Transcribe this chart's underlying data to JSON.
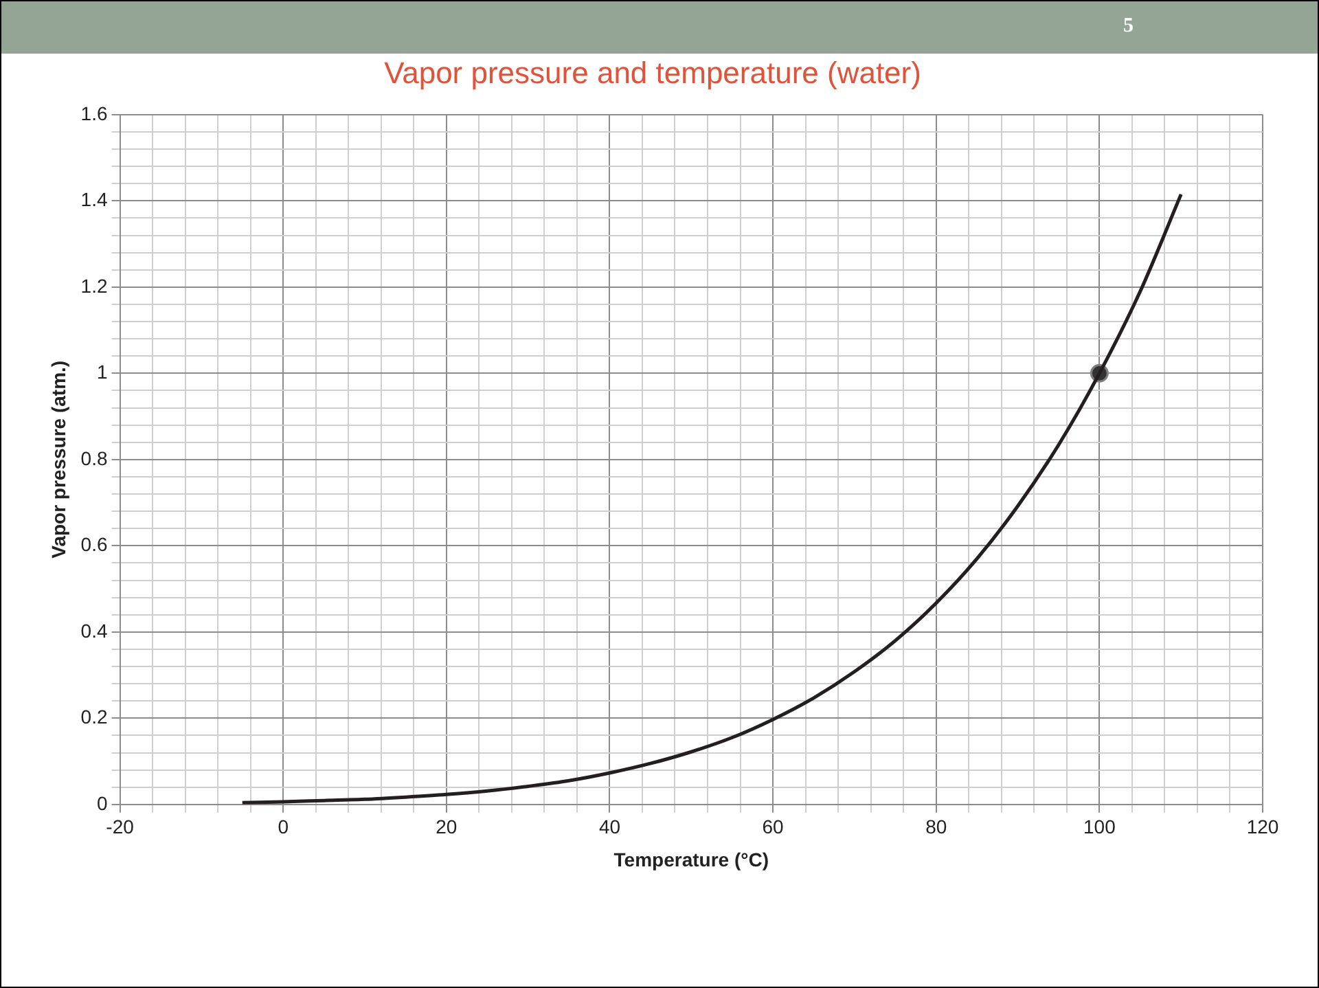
{
  "chart_data": {
    "type": "line",
    "title": "Vapor pressure and temperature (water)",
    "xlabel": "Temperature (°C)",
    "ylabel": "Vapor pressure (atm.)",
    "annotations": [
      "5"
    ],
    "series": [
      {
        "color": "#231f20",
        "marker": "none",
        "x": [
          -5,
          0,
          5,
          10,
          15,
          20,
          25,
          30,
          35,
          40,
          45,
          50,
          55,
          60,
          65,
          70,
          75,
          80,
          85,
          90,
          95,
          100,
          105,
          110
        ],
        "values": [
          0.004,
          0.006,
          0.009,
          0.012,
          0.017,
          0.023,
          0.031,
          0.042,
          0.055,
          0.073,
          0.095,
          0.122,
          0.155,
          0.197,
          0.247,
          0.308,
          0.38,
          0.467,
          0.57,
          0.692,
          0.834,
          1,
          1.19,
          1.415
        ]
      },
      {
        "type": "scatter",
        "color": "#333333",
        "marker": "circle",
        "x": [
          100
        ],
        "values": [
          1
        ]
      }
    ],
    "xlim": [
      -20,
      120
    ],
    "ylim": [
      0,
      1.6
    ],
    "grid": true,
    "xticks": [
      -20,
      {
        "value": -16,
        "label": null
      },
      {
        "value": -12,
        "label": null
      },
      {
        "value": -8,
        "label": null
      },
      {
        "value": -4,
        "label": null
      },
      0,
      {
        "value": 4,
        "label": null
      },
      {
        "value": 8,
        "label": null
      },
      {
        "value": 12,
        "label": null
      },
      {
        "value": 16,
        "label": null
      },
      20,
      {
        "value": 24,
        "label": null
      },
      {
        "value": 28,
        "label": null
      },
      {
        "value": 32,
        "label": null
      },
      {
        "value": 36,
        "label": null
      },
      40,
      {
        "value": 44,
        "label": null
      },
      {
        "value": 48,
        "label": null
      },
      {
        "value": 52,
        "label": null
      },
      {
        "value": 56,
        "label": null
      },
      60,
      {
        "value": 64,
        "label": null
      },
      {
        "value": 68,
        "label": null
      },
      {
        "value": 72,
        "label": null
      },
      {
        "value": 76,
        "label": null
      },
      80,
      {
        "value": 84,
        "label": null
      },
      {
        "value": 88,
        "label": null
      },
      {
        "value": 92,
        "label": null
      },
      {
        "value": 96,
        "label": null
      },
      100,
      {
        "value": 104,
        "label": null
      },
      {
        "value": 108,
        "label": null
      },
      {
        "value": 112,
        "label": null
      },
      {
        "value": 116,
        "label": null
      },
      120
    ],
    "yticks": [
      0,
      {
        "value": 0.04,
        "label": null
      },
      {
        "value": 0.08,
        "label": null
      },
      {
        "value": 0.12,
        "label": null
      },
      {
        "value": 0.16,
        "label": null
      },
      0.2,
      {
        "value": 0.24,
        "label": null
      },
      {
        "value": 0.28,
        "label": null
      },
      {
        "value": 0.32,
        "label": null
      },
      {
        "value": 0.36,
        "label": null
      },
      0.4,
      {
        "value": 0.44,
        "label": null
      },
      {
        "value": 0.48,
        "label": null
      },
      {
        "value": 0.52,
        "label": null
      },
      {
        "value": 0.56,
        "label": null
      },
      0.6,
      {
        "value": 0.64,
        "label": null
      },
      {
        "value": 0.68,
        "label": null
      },
      {
        "value": 0.72,
        "label": null
      },
      {
        "value": 0.76,
        "label": null
      },
      0.8,
      {
        "value": 0.84,
        "label": null
      },
      {
        "value": 0.88,
        "label": null
      },
      {
        "value": 0.92,
        "label": null
      },
      {
        "value": 0.96,
        "label": null
      },
      1,
      {
        "value": 1.04,
        "label": null
      },
      {
        "value": 1.08,
        "label": null
      },
      {
        "value": 1.12,
        "label": null
      },
      {
        "value": 1.16,
        "label": null
      },
      1.2,
      {
        "value": 1.24,
        "label": null
      },
      {
        "value": 1.28,
        "label": null
      },
      {
        "value": 1.32,
        "label": null
      },
      {
        "value": 1.36,
        "label": null
      },
      1.4,
      {
        "value": 1.44,
        "label": null
      },
      {
        "value": 1.48,
        "label": null
      },
      {
        "value": 1.52,
        "label": null
      },
      {
        "value": 1.56,
        "label": null
      },
      1.6
    ]
  }
}
